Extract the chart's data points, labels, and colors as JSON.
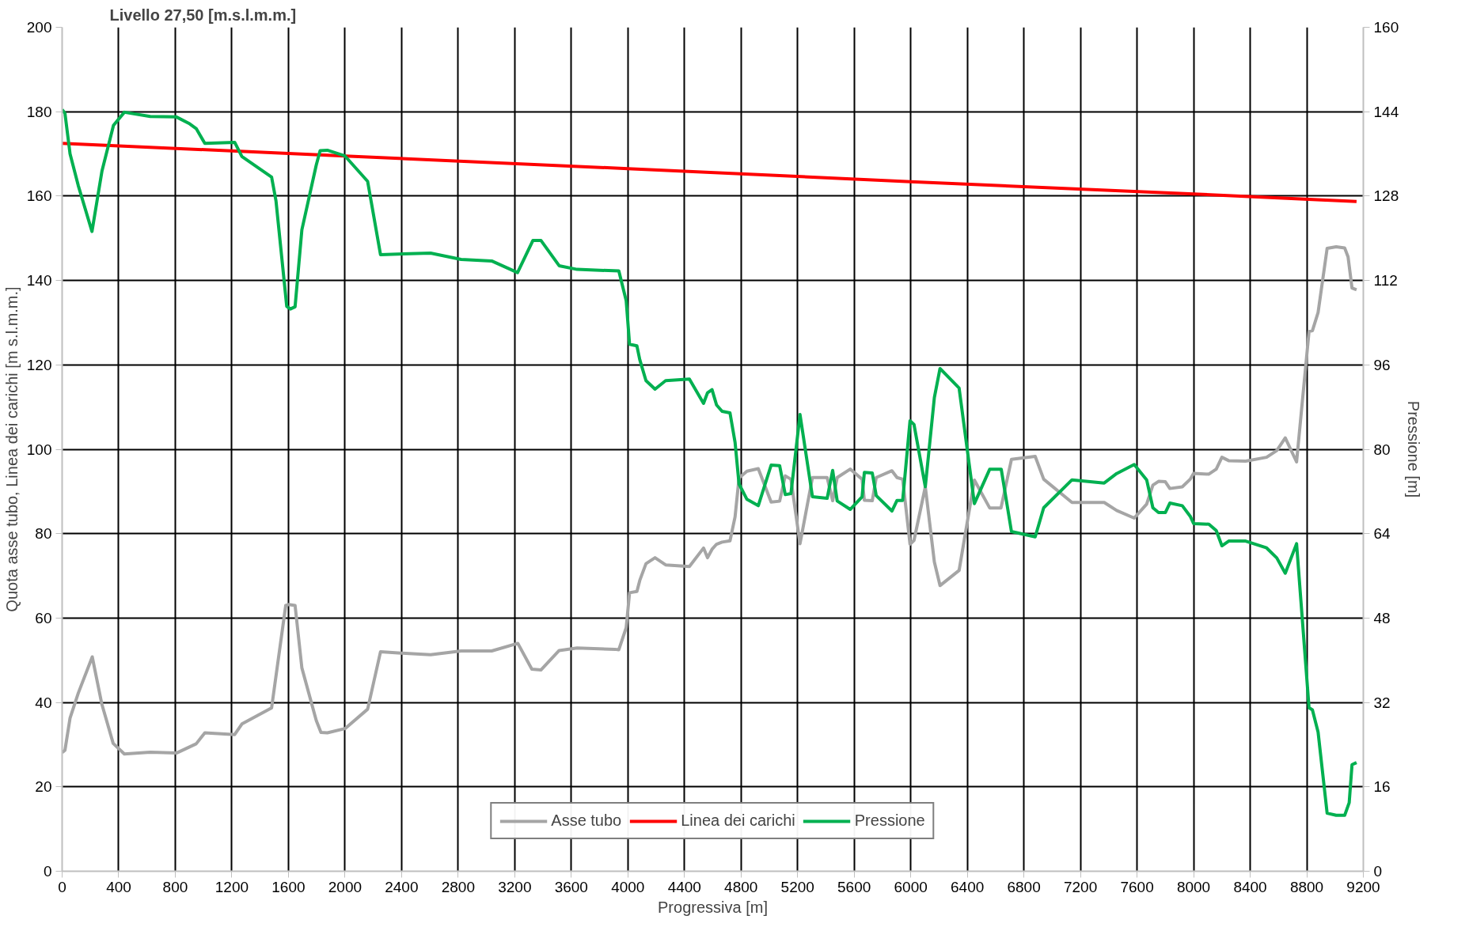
{
  "chart_data": {
    "type": "line",
    "title": "Livello 27,50 [m.s.l.m.m.]",
    "xlabel": "Progressiva [m]",
    "ylabel": "Quota asse tubo, Linea dei carichi [m s.l.m.m.]",
    "y2label": "Pressione [m]",
    "xlim": [
      0,
      9200
    ],
    "xticks": [
      0,
      400,
      800,
      1200,
      1600,
      2000,
      2400,
      2800,
      3200,
      3600,
      4000,
      4400,
      4800,
      5200,
      5600,
      6000,
      6400,
      6800,
      7200,
      7600,
      8000,
      8400,
      8800,
      9200
    ],
    "ylim": [
      0,
      200
    ],
    "yticks": [
      0,
      20,
      40,
      60,
      80,
      100,
      120,
      140,
      160,
      180,
      200
    ],
    "y2lim": [
      0,
      160
    ],
    "y2ticks": [
      0,
      16,
      32,
      48,
      64,
      80,
      96,
      112,
      128,
      144,
      160
    ],
    "grid": true,
    "legend": "bottom",
    "line_style": "solid",
    "series": [
      {
        "name": "Asse tubo",
        "color": "#a5a5a5",
        "x": [
          0,
          20,
          56,
          114,
          213,
          280,
          361,
          440,
          623,
          808,
          948,
          1009,
          1220,
          1271,
          1481,
          1581,
          1601,
          1647,
          1695,
          1797,
          1830,
          1875,
          2000,
          2160,
          2251,
          2396,
          2605,
          2821,
          3037,
          3222,
          3321,
          3385,
          3514,
          3641,
          3908,
          3936,
          3988,
          4012,
          4064,
          4084,
          4128,
          4192,
          4267,
          4435,
          4535,
          4563,
          4595,
          4627,
          4666,
          4722,
          4758,
          4786,
          4842,
          4922,
          5013,
          5073,
          5113,
          5153,
          5217,
          5305,
          5409,
          5448,
          5480,
          5572,
          5656,
          5672,
          5728,
          5756,
          5867,
          5903,
          5943,
          5995,
          6023,
          6103,
          6167,
          6207,
          6342,
          6450,
          6558,
          6638,
          6712,
          6880,
          6940,
          7140,
          7368,
          7456,
          7580,
          7668,
          7712,
          7752,
          7800,
          7832,
          7920,
          7976,
          8000,
          8108,
          8160,
          8200,
          8248,
          8368,
          8516,
          8588,
          8648,
          8728,
          8816,
          8840,
          8880,
          8944,
          9008,
          9068,
          9092,
          9120,
          9152
        ],
        "values": [
          28.1,
          28.7,
          36.3,
          42.2,
          50.8,
          39.7,
          30.3,
          27.8,
          28.2,
          28.0,
          30.2,
          32.8,
          32.4,
          34.9,
          38.7,
          63.0,
          63.2,
          63.0,
          48.2,
          35.7,
          32.9,
          32.8,
          33.8,
          38.4,
          52.0,
          51.7,
          51.3,
          52.2,
          52.2,
          54.0,
          47.9,
          47.7,
          52.3,
          52.9,
          52.6,
          52.5,
          57.7,
          66.0,
          66.3,
          68.9,
          72.9,
          74.3,
          72.6,
          72.2,
          76.6,
          74.3,
          76.3,
          77.5,
          78.0,
          78.3,
          84.0,
          93.2,
          94.8,
          95.4,
          87.5,
          87.7,
          93.7,
          92.9,
          77.6,
          93.3,
          93.3,
          87.8,
          93.3,
          95.3,
          92.9,
          87.9,
          87.8,
          93.3,
          94.9,
          93.3,
          92.9,
          77.5,
          78.4,
          91.1,
          73.3,
          67.7,
          71.3,
          92.7,
          86.1,
          86.1,
          97.6,
          98.3,
          92.9,
          87.4,
          87.4,
          85.5,
          83.7,
          87.0,
          91.5,
          92.4,
          92.3,
          90.7,
          91.1,
          92.9,
          94.3,
          94.1,
          95.3,
          98.1,
          97.3,
          97.2,
          98.1,
          99.7,
          102.7,
          97.0,
          127.9,
          128.1,
          132.4,
          147.6,
          148.0,
          147.7,
          145.6,
          138.2,
          137.8
        ]
      },
      {
        "name": "Linea dei carichi",
        "color": "#ff0000",
        "x": [
          0,
          2000,
          4000,
          6000,
          8000,
          9152
        ],
        "values": [
          172.5,
          169.5,
          166.5,
          163.4,
          160.5,
          158.7
        ]
      },
      {
        "name": "Pressione",
        "color": "#00b050",
        "axis": "y2",
        "x": [
          0,
          20,
          56,
          114,
          211,
          282,
          363,
          440,
          623,
          808,
          902,
          948,
          1009,
          1220,
          1271,
          1481,
          1512,
          1588,
          1614,
          1647,
          1695,
          1797,
          1824,
          1875,
          2000,
          2160,
          2251,
          2605,
          2821,
          3037,
          3220,
          3329,
          3385,
          3514,
          3641,
          3936,
          3988,
          4012,
          4064,
          4084,
          4128,
          4192,
          4267,
          4435,
          4535,
          4563,
          4595,
          4627,
          4666,
          4722,
          4758,
          4786,
          4842,
          4922,
          5013,
          5073,
          5113,
          5153,
          5217,
          5305,
          5409,
          5448,
          5480,
          5572,
          5656,
          5672,
          5728,
          5756,
          5867,
          5903,
          5943,
          5995,
          6023,
          6103,
          6167,
          6207,
          6342,
          6450,
          6558,
          6640,
          6712,
          6880,
          6940,
          7140,
          7368,
          7456,
          7580,
          7668,
          7712,
          7752,
          7800,
          7832,
          7920,
          7976,
          8000,
          8108,
          8160,
          8200,
          8248,
          8368,
          8516,
          8588,
          8648,
          8728,
          8816,
          8840,
          8880,
          8944,
          9008,
          9068,
          9100,
          9120,
          9152
        ],
        "values": [
          144.4,
          143.7,
          136.0,
          130.0,
          121.3,
          132.8,
          141.4,
          143.9,
          143.1,
          143.0,
          141.7,
          140.8,
          138.0,
          138.2,
          135.5,
          131.6,
          127.1,
          107.1,
          106.6,
          107.0,
          121.6,
          133.9,
          136.6,
          136.7,
          135.6,
          130.8,
          116.9,
          117.2,
          116.0,
          115.7,
          113.5,
          119.6,
          119.6,
          114.8,
          114.1,
          113.8,
          108.2,
          99.9,
          99.6,
          97.0,
          93.0,
          91.4,
          93.0,
          93.3,
          88.7,
          90.7,
          91.3,
          88.4,
          87.2,
          86.9,
          81.3,
          73.4,
          70.5,
          69.3,
          77.0,
          76.9,
          71.4,
          71.6,
          86.6,
          71.0,
          70.7,
          76.0,
          70.2,
          68.6,
          71.0,
          75.6,
          75.5,
          71.2,
          68.3,
          70.3,
          70.3,
          85.4,
          84.7,
          72.9,
          89.8,
          95.3,
          91.6,
          69.7,
          76.2,
          76.2,
          64.4,
          63.4,
          68.9,
          74.2,
          73.6,
          75.4,
          77.1,
          74.2,
          68.9,
          68.0,
          68.0,
          69.8,
          69.3,
          67.3,
          65.9,
          65.8,
          64.6,
          61.7,
          62.6,
          62.6,
          61.3,
          59.4,
          56.5,
          62.1,
          31.0,
          30.6,
          26.4,
          11.0,
          10.6,
          10.6,
          13.0,
          20.2,
          20.6
        ]
      }
    ]
  }
}
